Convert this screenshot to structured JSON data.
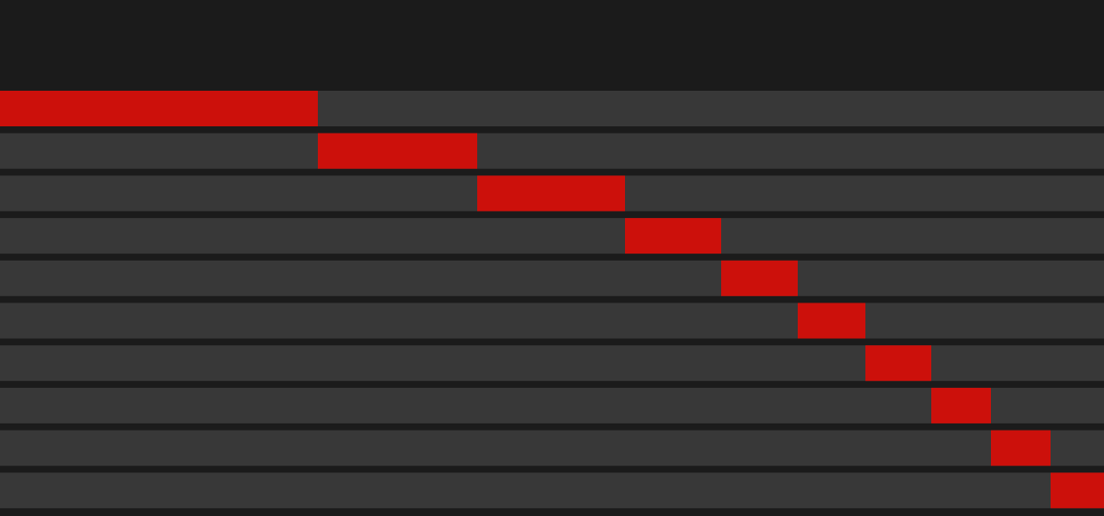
{
  "chart_data": {
    "type": "waterfall",
    "color": "#cc100b",
    "values": [
      357,
      179,
      166,
      108,
      86,
      76,
      74,
      67,
      67,
      60
    ]
  }
}
